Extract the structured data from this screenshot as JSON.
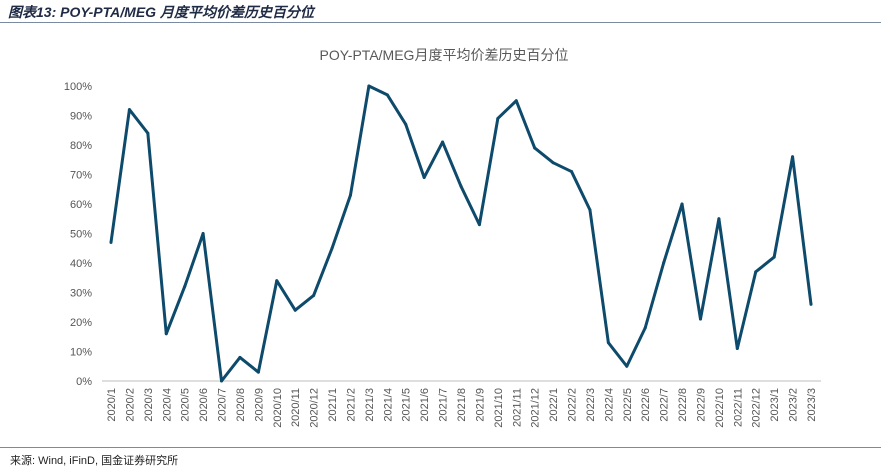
{
  "caption": "图表13: POY-PTA/MEG 月度平均价差历史百分位",
  "source": "来源: Wind, iFinD, 国金证券研究所",
  "chart_data": {
    "type": "line",
    "title": "POY-PTA/MEG月度平均价差历史百分位",
    "xlabel": "",
    "ylabel": "",
    "ylim": [
      0,
      100
    ],
    "y_ticks": [
      "0%",
      "10%",
      "20%",
      "30%",
      "40%",
      "50%",
      "60%",
      "70%",
      "80%",
      "90%",
      "100%"
    ],
    "grid": false,
    "legend": "none",
    "line_color": "#0d4a6b",
    "categories": [
      "2020/1",
      "2020/2",
      "2020/3",
      "2020/4",
      "2020/5",
      "2020/6",
      "2020/7",
      "2020/8",
      "2020/9",
      "2020/10",
      "2020/11",
      "2020/12",
      "2021/1",
      "2021/2",
      "2021/3",
      "2021/4",
      "2021/5",
      "2021/6",
      "2021/7",
      "2021/8",
      "2021/9",
      "2021/10",
      "2021/11",
      "2021/12",
      "2022/1",
      "2022/2",
      "2022/3",
      "2022/4",
      "2022/5",
      "2022/6",
      "2022/7",
      "2022/8",
      "2022/9",
      "2022/10",
      "2022/11",
      "2022/12",
      "2023/1",
      "2023/2",
      "2023/3"
    ],
    "series": [
      {
        "values": [
          47,
          92,
          84,
          16,
          32,
          50,
          0,
          8,
          3,
          34,
          24,
          29,
          45,
          63,
          100,
          97,
          87,
          69,
          81,
          66,
          53,
          89,
          95,
          79,
          74,
          71,
          58,
          13,
          5,
          18,
          40,
          60,
          21,
          55,
          11,
          37,
          42,
          76,
          26
        ]
      }
    ]
  }
}
